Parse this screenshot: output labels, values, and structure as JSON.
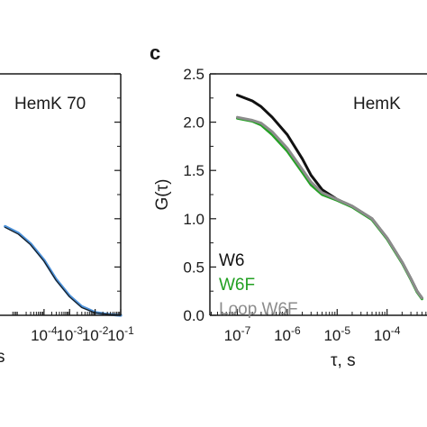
{
  "chart_data": [
    {
      "type": "line",
      "panel_label": "",
      "title": "HemK 70",
      "xlabel": "s",
      "ylabel": "",
      "x_scale": "log",
      "x_tick_labels": [
        {
          "x": 0.0001,
          "base": "10",
          "exp": "-4"
        },
        {
          "x": 0.001,
          "base": "10",
          "exp": "-3"
        },
        {
          "x": 0.01,
          "base": "10",
          "exp": "-2"
        },
        {
          "x": 0.1,
          "base": "10",
          "exp": "-1"
        }
      ],
      "ylim": [
        0,
        2.5
      ],
      "series": [
        {
          "name": "",
          "color": "#4a90d9",
          "width": 3.2,
          "points": [
            [
              3e-06,
              0.92
            ],
            [
              1e-05,
              0.85
            ],
            [
              3e-05,
              0.74
            ],
            [
              0.0001,
              0.57
            ],
            [
              0.0003,
              0.37
            ],
            [
              0.001,
              0.2
            ],
            [
              0.003,
              0.09
            ],
            [
              0.01,
              0.03
            ],
            [
              0.03,
              0.01
            ],
            [
              0.1,
              0.0
            ]
          ]
        },
        {
          "name": "",
          "color": "#1a1a1a",
          "width": 1.2,
          "points": [
            [
              3e-06,
              0.91
            ],
            [
              1e-05,
              0.84
            ],
            [
              3e-05,
              0.73
            ],
            [
              0.0001,
              0.56
            ],
            [
              0.0003,
              0.36
            ],
            [
              0.001,
              0.19
            ],
            [
              0.003,
              0.08
            ],
            [
              0.01,
              0.025
            ],
            [
              0.03,
              0.01
            ],
            [
              0.1,
              0.0
            ]
          ]
        }
      ]
    },
    {
      "type": "line",
      "panel_label": "c",
      "title": "HemK",
      "xlabel": "τ, s",
      "ylabel": "G(τ)",
      "x_scale": "log",
      "y_ticks": [
        0.0,
        0.5,
        1.0,
        1.5,
        2.0,
        2.5
      ],
      "y_tick_labels": [
        "0.0",
        "0.5",
        "1.0",
        "1.5",
        "2.0",
        "2.5"
      ],
      "x_tick_labels": [
        {
          "x": 1e-07,
          "base": "10",
          "exp": "-7"
        },
        {
          "x": 1e-06,
          "base": "10",
          "exp": "-6"
        },
        {
          "x": 1e-05,
          "base": "10",
          "exp": "-5"
        },
        {
          "x": 0.0001,
          "base": "10",
          "exp": "-4"
        }
      ],
      "ylim": [
        0,
        2.5
      ],
      "legend_position": "bottom-left",
      "series": [
        {
          "name": "W6",
          "color": "#111111",
          "points": [
            [
              1e-07,
              2.28
            ],
            [
              2e-07,
              2.22
            ],
            [
              3e-07,
              2.16
            ],
            [
              5e-07,
              2.05
            ],
            [
              1e-06,
              1.87
            ],
            [
              2e-06,
              1.62
            ],
            [
              3e-06,
              1.45
            ],
            [
              5e-06,
              1.3
            ],
            [
              1e-05,
              1.2
            ],
            [
              2e-05,
              1.13
            ],
            [
              5e-05,
              1.0
            ],
            [
              0.0001,
              0.8
            ],
            [
              0.0002,
              0.55
            ],
            [
              0.0003,
              0.38
            ],
            [
              0.0004,
              0.25
            ],
            [
              0.0005,
              0.18
            ]
          ]
        },
        {
          "name": "W6F",
          "color": "#22a022",
          "points": [
            [
              1e-07,
              2.04
            ],
            [
              2e-07,
              2.01
            ],
            [
              3e-07,
              1.97
            ],
            [
              5e-07,
              1.87
            ],
            [
              1e-06,
              1.7
            ],
            [
              2e-06,
              1.48
            ],
            [
              3e-06,
              1.35
            ],
            [
              5e-06,
              1.25
            ],
            [
              1e-05,
              1.19
            ],
            [
              2e-05,
              1.12
            ],
            [
              5e-05,
              0.99
            ],
            [
              0.0001,
              0.79
            ],
            [
              0.0002,
              0.54
            ],
            [
              0.0003,
              0.37
            ],
            [
              0.0004,
              0.24
            ],
            [
              0.0005,
              0.17
            ]
          ]
        },
        {
          "name": "Loop W6F",
          "color": "#8c8c8c",
          "points": [
            [
              1e-07,
              2.05
            ],
            [
              2e-07,
              2.02
            ],
            [
              3e-07,
              1.99
            ],
            [
              5e-07,
              1.9
            ],
            [
              1e-06,
              1.73
            ],
            [
              2e-06,
              1.51
            ],
            [
              3e-06,
              1.38
            ],
            [
              5e-06,
              1.27
            ],
            [
              1e-05,
              1.2
            ],
            [
              2e-05,
              1.13
            ],
            [
              5e-05,
              1.0
            ],
            [
              0.0001,
              0.8
            ],
            [
              0.0002,
              0.55
            ],
            [
              0.0003,
              0.38
            ],
            [
              0.0004,
              0.25
            ],
            [
              0.0005,
              0.18
            ]
          ]
        }
      ]
    }
  ]
}
